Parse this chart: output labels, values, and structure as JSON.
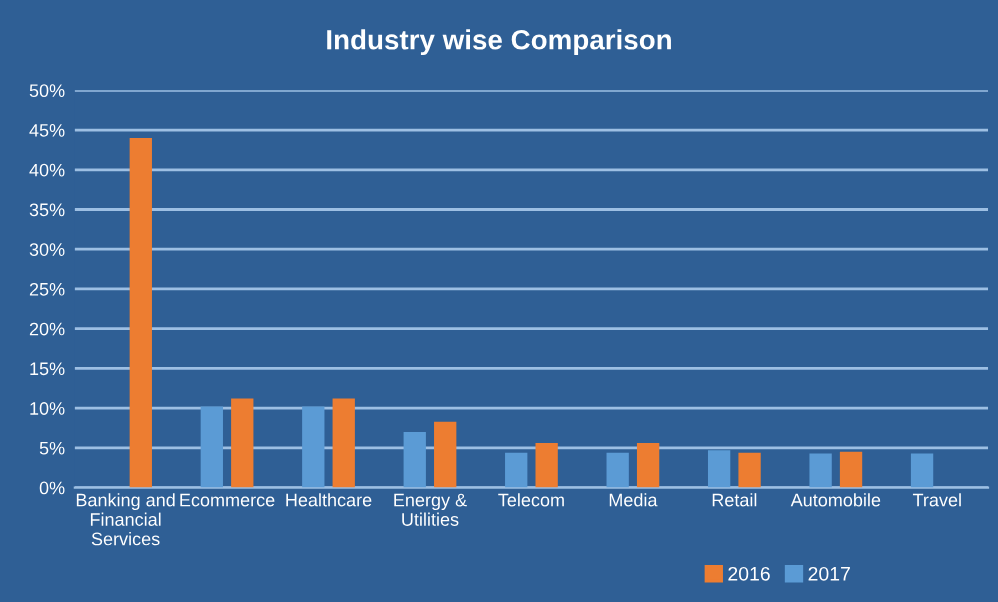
{
  "chart_data": {
    "type": "bar",
    "title": "Industry wise Comparison",
    "categories": [
      "Banking and\nFinancial\nServices",
      "Ecommerce",
      "Healthcare",
      "Energy &\nUtilities",
      "Telecom",
      "Media",
      "Retail",
      "Automobile",
      "Travel"
    ],
    "series": [
      {
        "name": "2017",
        "color": "#5b9bd5",
        "values": [
          null,
          10.2,
          10.2,
          7.0,
          4.4,
          4.4,
          4.7,
          4.3,
          4.3
        ]
      },
      {
        "name": "2016",
        "color": "#ed7d31",
        "values": [
          44.0,
          11.2,
          11.2,
          8.3,
          5.6,
          5.6,
          4.4,
          4.5,
          null
        ]
      }
    ],
    "ylim": [
      0,
      50
    ],
    "yticks": [
      {
        "value": 0,
        "label": "0%"
      },
      {
        "value": 5,
        "label": "5%"
      },
      {
        "value": 10,
        "label": "10%"
      },
      {
        "value": 15,
        "label": "15%"
      },
      {
        "value": 20,
        "label": "20%"
      },
      {
        "value": 25,
        "label": "25%"
      },
      {
        "value": 30,
        "label": "30%"
      },
      {
        "value": 35,
        "label": "35%"
      },
      {
        "value": 40,
        "label": "40%"
      },
      {
        "value": 45,
        "label": "45%"
      },
      {
        "value": 50,
        "label": "50%"
      }
    ],
    "grid": "y",
    "legend": "bottom right"
  }
}
